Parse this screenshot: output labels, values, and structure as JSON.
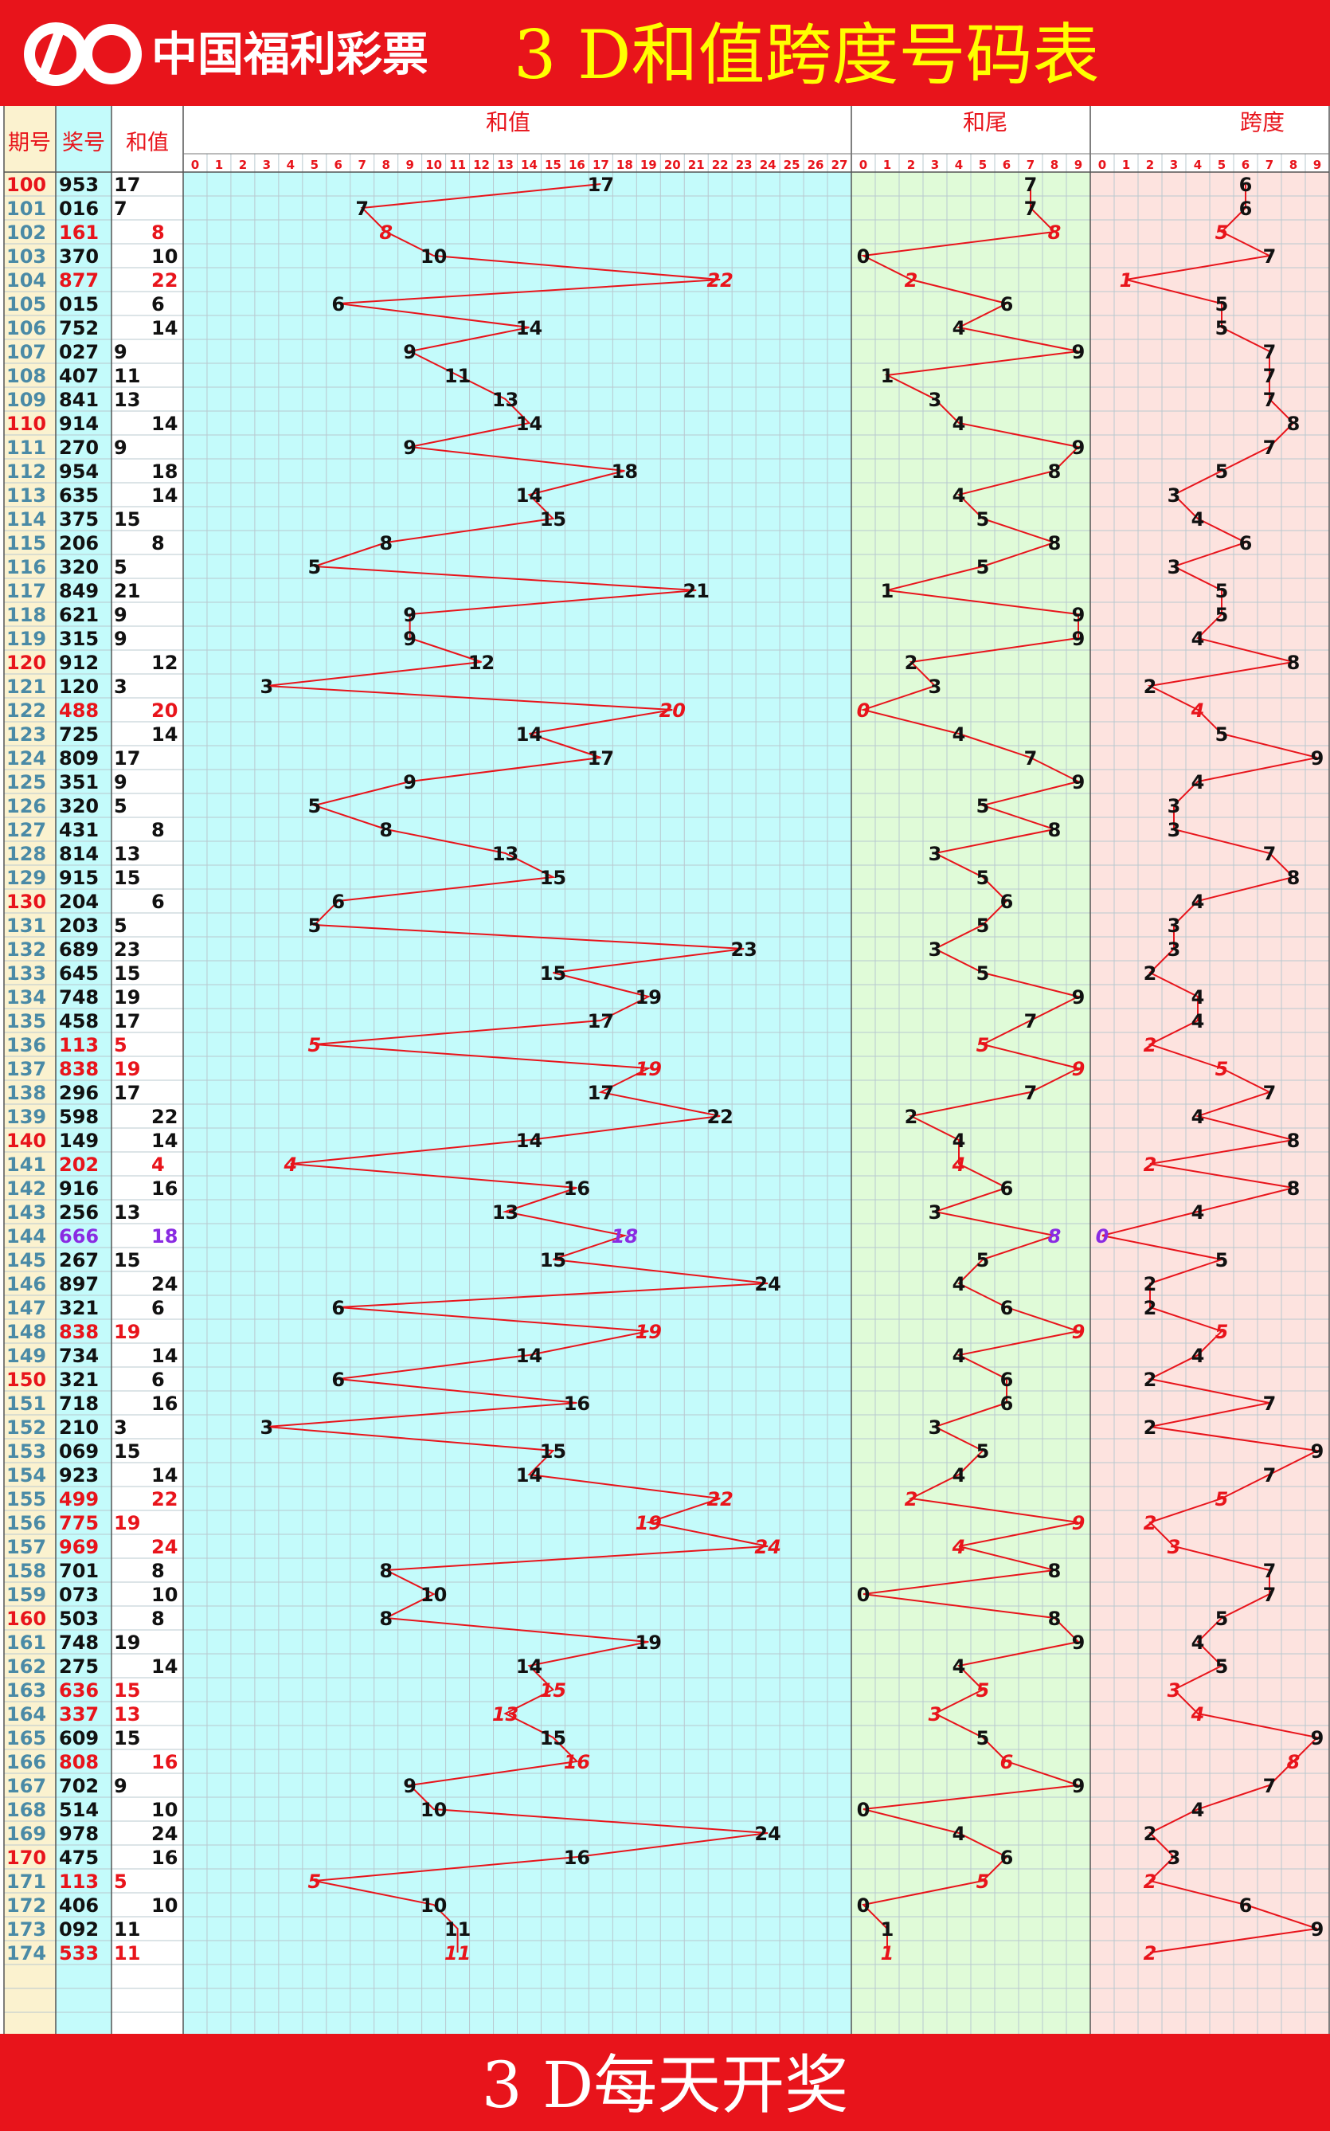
{
  "header": {
    "logo_text": "中国福利彩票",
    "title": "3 D和值跨度号码表"
  },
  "footer": {
    "text": "3 D每天开奖"
  },
  "columns": {
    "period": "期号",
    "number": "奖号",
    "sum": "和值",
    "sum_section": "和值",
    "tail_section": "和尾",
    "span_section": "跨度"
  },
  "colors": {
    "banner": "#e8141b",
    "banner_text": "#ffff00",
    "red": "#e8141b",
    "purple": "#8a2be2",
    "sum_bg": "#c4fbfb",
    "tail_bg": "#e0fbd8",
    "span_bg": "#fde3df",
    "period_bg": "#fbf2cf"
  },
  "chart_data": {
    "type": "line",
    "title": "3 D和值跨度号码表",
    "sum_axis": [
      0,
      1,
      2,
      3,
      4,
      5,
      6,
      7,
      8,
      9,
      10,
      11,
      12,
      13,
      14,
      15,
      16,
      17,
      18,
      19,
      20,
      21,
      22,
      23,
      24,
      25,
      26,
      27
    ],
    "tail_axis": [
      0,
      1,
      2,
      3,
      4,
      5,
      6,
      7,
      8,
      9
    ],
    "span_axis": [
      0,
      1,
      2,
      3,
      4,
      5,
      6,
      7,
      8,
      9
    ],
    "rows": [
      {
        "period": "100",
        "number": "953",
        "sum": 17,
        "tail": 7,
        "span": 6
      },
      {
        "period": "101",
        "number": "016",
        "sum": 7,
        "tail": 7,
        "span": 6
      },
      {
        "period": "102",
        "number": "161",
        "sum": 8,
        "tail": 8,
        "span": 5
      },
      {
        "period": "103",
        "number": "370",
        "sum": 10,
        "tail": 0,
        "span": 7
      },
      {
        "period": "104",
        "number": "877",
        "sum": 22,
        "tail": 2,
        "span": 1
      },
      {
        "period": "105",
        "number": "015",
        "sum": 6,
        "tail": 6,
        "span": 5
      },
      {
        "period": "106",
        "number": "752",
        "sum": 14,
        "tail": 4,
        "span": 5
      },
      {
        "period": "107",
        "number": "027",
        "sum": 9,
        "tail": 9,
        "span": 7
      },
      {
        "period": "108",
        "number": "407",
        "sum": 11,
        "tail": 1,
        "span": 7
      },
      {
        "period": "109",
        "number": "841",
        "sum": 13,
        "tail": 3,
        "span": 7
      },
      {
        "period": "110",
        "number": "914",
        "sum": 14,
        "tail": 4,
        "span": 8
      },
      {
        "period": "111",
        "number": "270",
        "sum": 9,
        "tail": 9,
        "span": 7
      },
      {
        "period": "112",
        "number": "954",
        "sum": 18,
        "tail": 8,
        "span": 5
      },
      {
        "period": "113",
        "number": "635",
        "sum": 14,
        "tail": 4,
        "span": 3
      },
      {
        "period": "114",
        "number": "375",
        "sum": 15,
        "tail": 5,
        "span": 4
      },
      {
        "period": "115",
        "number": "206",
        "sum": 8,
        "tail": 8,
        "span": 6
      },
      {
        "period": "116",
        "number": "320",
        "sum": 5,
        "tail": 5,
        "span": 3
      },
      {
        "period": "117",
        "number": "849",
        "sum": 21,
        "tail": 1,
        "span": 5
      },
      {
        "period": "118",
        "number": "621",
        "sum": 9,
        "tail": 9,
        "span": 5
      },
      {
        "period": "119",
        "number": "315",
        "sum": 9,
        "tail": 9,
        "span": 4
      },
      {
        "period": "120",
        "number": "912",
        "sum": 12,
        "tail": 2,
        "span": 8
      },
      {
        "period": "121",
        "number": "120",
        "sum": 3,
        "tail": 3,
        "span": 2
      },
      {
        "period": "122",
        "number": "488",
        "sum": 20,
        "tail": 0,
        "span": 4
      },
      {
        "period": "123",
        "number": "725",
        "sum": 14,
        "tail": 4,
        "span": 5
      },
      {
        "period": "124",
        "number": "809",
        "sum": 17,
        "tail": 7,
        "span": 9
      },
      {
        "period": "125",
        "number": "351",
        "sum": 9,
        "tail": 9,
        "span": 4
      },
      {
        "period": "126",
        "number": "320",
        "sum": 5,
        "tail": 5,
        "span": 3
      },
      {
        "period": "127",
        "number": "431",
        "sum": 8,
        "tail": 8,
        "span": 3
      },
      {
        "period": "128",
        "number": "814",
        "sum": 13,
        "tail": 3,
        "span": 7
      },
      {
        "period": "129",
        "number": "915",
        "sum": 15,
        "tail": 5,
        "span": 8
      },
      {
        "period": "130",
        "number": "204",
        "sum": 6,
        "tail": 6,
        "span": 4
      },
      {
        "period": "131",
        "number": "203",
        "sum": 5,
        "tail": 5,
        "span": 3
      },
      {
        "period": "132",
        "number": "689",
        "sum": 23,
        "tail": 3,
        "span": 3
      },
      {
        "period": "133",
        "number": "645",
        "sum": 15,
        "tail": 5,
        "span": 2
      },
      {
        "period": "134",
        "number": "748",
        "sum": 19,
        "tail": 9,
        "span": 4
      },
      {
        "period": "135",
        "number": "458",
        "sum": 17,
        "tail": 7,
        "span": 4
      },
      {
        "period": "136",
        "number": "113",
        "sum": 5,
        "tail": 5,
        "span": 2
      },
      {
        "period": "137",
        "number": "838",
        "sum": 19,
        "tail": 9,
        "span": 5
      },
      {
        "period": "138",
        "number": "296",
        "sum": 17,
        "tail": 7,
        "span": 7
      },
      {
        "period": "139",
        "number": "598",
        "sum": 22,
        "tail": 2,
        "span": 4
      },
      {
        "period": "140",
        "number": "149",
        "sum": 14,
        "tail": 4,
        "span": 8
      },
      {
        "period": "141",
        "number": "202",
        "sum": 4,
        "tail": 4,
        "span": 2
      },
      {
        "period": "142",
        "number": "916",
        "sum": 16,
        "tail": 6,
        "span": 8
      },
      {
        "period": "143",
        "number": "256",
        "sum": 13,
        "tail": 3,
        "span": 4
      },
      {
        "period": "144",
        "number": "666",
        "sum": 18,
        "tail": 8,
        "span": 0
      },
      {
        "period": "145",
        "number": "267",
        "sum": 15,
        "tail": 5,
        "span": 5
      },
      {
        "period": "146",
        "number": "897",
        "sum": 24,
        "tail": 4,
        "span": 2
      },
      {
        "period": "147",
        "number": "321",
        "sum": 6,
        "tail": 6,
        "span": 2
      },
      {
        "period": "148",
        "number": "838",
        "sum": 19,
        "tail": 9,
        "span": 5
      },
      {
        "period": "149",
        "number": "734",
        "sum": 14,
        "tail": 4,
        "span": 4
      },
      {
        "period": "150",
        "number": "321",
        "sum": 6,
        "tail": 6,
        "span": 2
      },
      {
        "period": "151",
        "number": "718",
        "sum": 16,
        "tail": 6,
        "span": 7
      },
      {
        "period": "152",
        "number": "210",
        "sum": 3,
        "tail": 3,
        "span": 2
      },
      {
        "period": "153",
        "number": "069",
        "sum": 15,
        "tail": 5,
        "span": 9
      },
      {
        "period": "154",
        "number": "923",
        "sum": 14,
        "tail": 4,
        "span": 7
      },
      {
        "period": "155",
        "number": "499",
        "sum": 22,
        "tail": 2,
        "span": 5
      },
      {
        "period": "156",
        "number": "775",
        "sum": 19,
        "tail": 9,
        "span": 2
      },
      {
        "period": "157",
        "number": "969",
        "sum": 24,
        "tail": 4,
        "span": 3
      },
      {
        "period": "158",
        "number": "701",
        "sum": 8,
        "tail": 8,
        "span": 7
      },
      {
        "period": "159",
        "number": "073",
        "sum": 10,
        "tail": 0,
        "span": 7
      },
      {
        "period": "160",
        "number": "503",
        "sum": 8,
        "tail": 8,
        "span": 5
      },
      {
        "period": "161",
        "number": "748",
        "sum": 19,
        "tail": 9,
        "span": 4
      },
      {
        "period": "162",
        "number": "275",
        "sum": 14,
        "tail": 4,
        "span": 5
      },
      {
        "period": "163",
        "number": "636",
        "sum": 15,
        "tail": 5,
        "span": 3
      },
      {
        "period": "164",
        "number": "337",
        "sum": 13,
        "tail": 3,
        "span": 4
      },
      {
        "period": "165",
        "number": "609",
        "sum": 15,
        "tail": 5,
        "span": 9
      },
      {
        "period": "166",
        "number": "808",
        "sum": 16,
        "tail": 6,
        "span": 8
      },
      {
        "period": "167",
        "number": "702",
        "sum": 9,
        "tail": 9,
        "span": 7
      },
      {
        "period": "168",
        "number": "514",
        "sum": 10,
        "tail": 0,
        "span": 4
      },
      {
        "period": "169",
        "number": "978",
        "sum": 24,
        "tail": 4,
        "span": 2
      },
      {
        "period": "170",
        "number": "475",
        "sum": 16,
        "tail": 6,
        "span": 3
      },
      {
        "period": "171",
        "number": "113",
        "sum": 5,
        "tail": 5,
        "span": 2
      },
      {
        "period": "172",
        "number": "406",
        "sum": 10,
        "tail": 0,
        "span": 6
      },
      {
        "period": "173",
        "number": "092",
        "sum": 11,
        "tail": 1,
        "span": 9
      },
      {
        "period": "174",
        "number": "533",
        "sum": 11,
        "tail": 1,
        "span": 2
      }
    ],
    "grid": true,
    "legend": "none"
  }
}
